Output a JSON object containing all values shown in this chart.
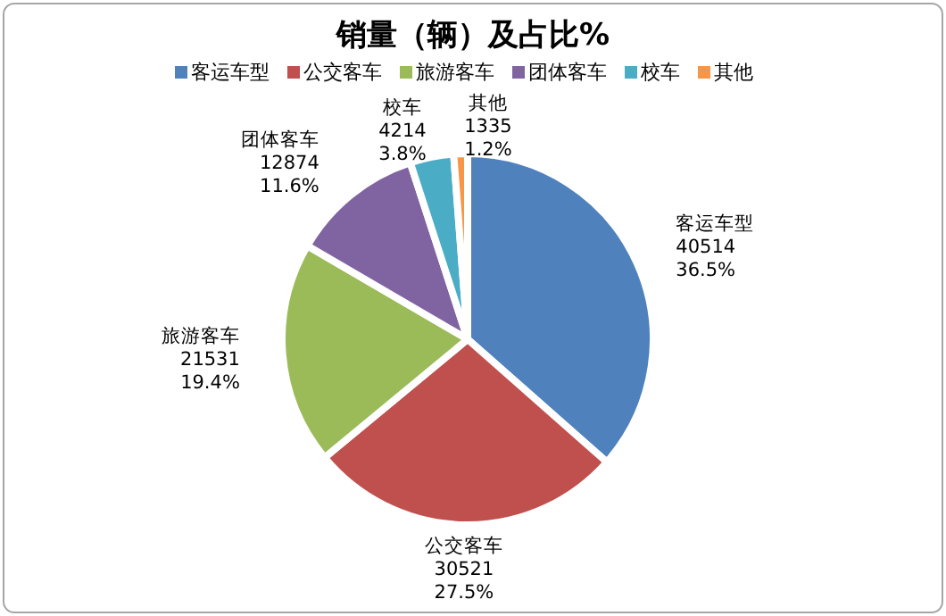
{
  "chart_data": {
    "type": "pie",
    "title": "销量（辆）及占比%",
    "categories": [
      "客运车型",
      "公交客车",
      "旅游客车",
      "团体客车",
      "校车",
      "其他"
    ],
    "values": [
      40514,
      30521,
      21531,
      12874,
      4214,
      1335
    ],
    "value_labels": [
      "40514\n36.5%",
      "30521\n27.5%",
      "21531\n19.4%",
      "12874\n11.6%",
      "4214\n3.8%",
      "1335\n1.2%"
    ],
    "colors": [
      "#4f81bd",
      "#c0504d",
      "#9bbb59",
      "#8064a2",
      "#4bacc6",
      "#f79646"
    ],
    "legend": "top"
  }
}
